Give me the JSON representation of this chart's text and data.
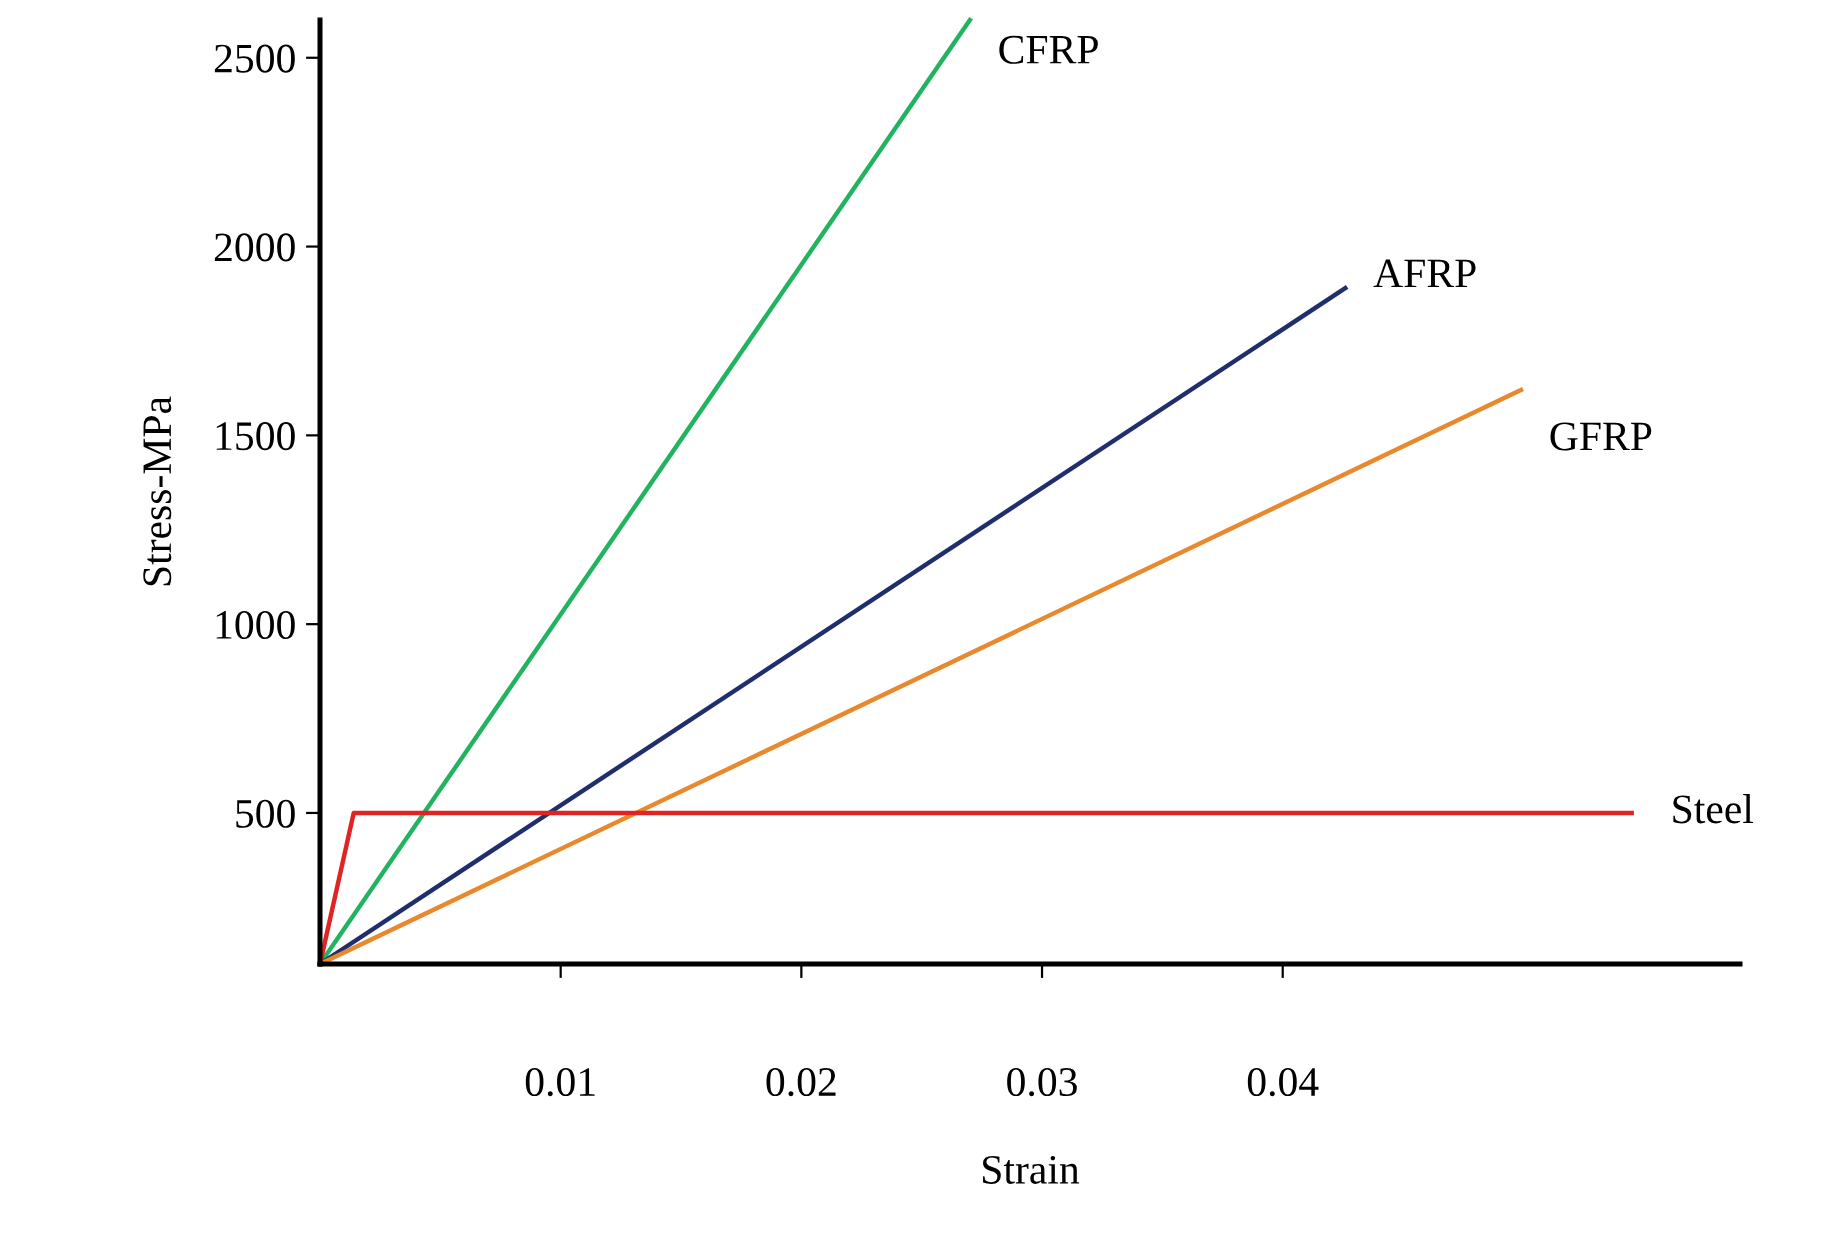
{
  "chart_data": {
    "type": "line",
    "xlabel": "Strain",
    "ylabel": "Stress-MPa",
    "xlim": [
      0,
      0.059
    ],
    "ylim": [
      100,
      2600
    ],
    "xticks": [
      0.01,
      0.02,
      0.03,
      0.04
    ],
    "yticks": [
      500,
      1000,
      1500,
      2000,
      2500
    ],
    "grid": false,
    "legend": false,
    "marker": "none",
    "line_style": "solid",
    "series": [
      {
        "name": "CFRP",
        "color": "#22b360",
        "x": [
          0,
          0.027
        ],
        "values": [
          100,
          2600
        ]
      },
      {
        "name": "AFRP",
        "color": "#1f2f6e",
        "x": [
          0,
          0.0426
        ],
        "values": [
          100,
          1890
        ]
      },
      {
        "name": "GFRP",
        "color": "#e8892e",
        "x": [
          0,
          0.0499
        ],
        "values": [
          100,
          1620
        ]
      },
      {
        "name": "Steel",
        "color": "#e02424",
        "x": [
          0,
          0.0014,
          0.0545
        ],
        "values": [
          100,
          500,
          500
        ]
      }
    ]
  }
}
